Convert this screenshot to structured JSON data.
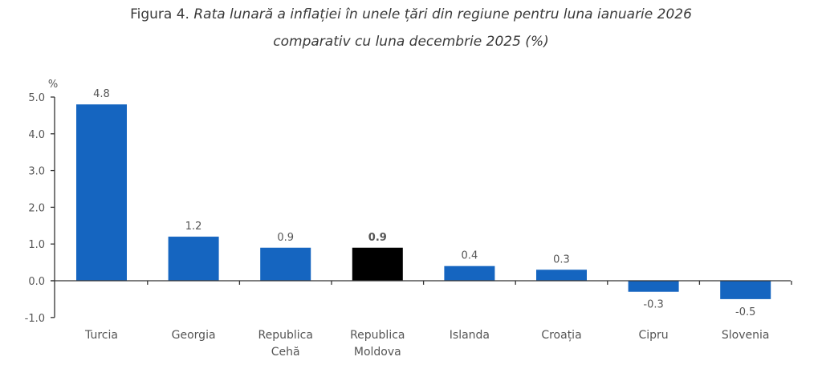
{
  "title": {
    "prefix": "Figura 4. ",
    "line1_italic": "Rata lunară a inflației în unele țări din regiune pentru luna ianuarie 2026",
    "line2_italic": "comparativ cu luna decembrie 2025 (%)"
  },
  "chart_data": {
    "type": "bar",
    "title": "Figura 4. Rata lunară a inflației în unele țări din regiune pentru luna ianuarie 2026 comparativ cu luna decembrie 2025 (%)",
    "xlabel": "",
    "ylabel": "%",
    "ylim": [
      -1.0,
      5.0
    ],
    "yticks": [
      "5.0",
      "4.0",
      "3.0",
      "2.0",
      "1.0",
      "0.0",
      "-1.0"
    ],
    "ytick_values": [
      5,
      4,
      3,
      2,
      1,
      0,
      -1
    ],
    "grid": false,
    "categories": [
      [
        "Turcia"
      ],
      [
        "Georgia"
      ],
      [
        "Republica",
        "Cehă"
      ],
      [
        "Republica",
        "Moldova"
      ],
      [
        "Islanda"
      ],
      [
        "Croația"
      ],
      [
        "Cipru"
      ],
      [
        "Slovenia"
      ]
    ],
    "values": [
      4.8,
      1.2,
      0.9,
      0.9,
      0.4,
      0.3,
      -0.3,
      -0.5
    ],
    "labels": [
      "4.8",
      "1.2",
      "0.9",
      "0.9",
      "0.4",
      "0.3",
      "-0.3",
      "-0.5"
    ],
    "highlight_index": 3,
    "colors": {
      "default": "#1565C0",
      "highlight": "#000000"
    }
  }
}
